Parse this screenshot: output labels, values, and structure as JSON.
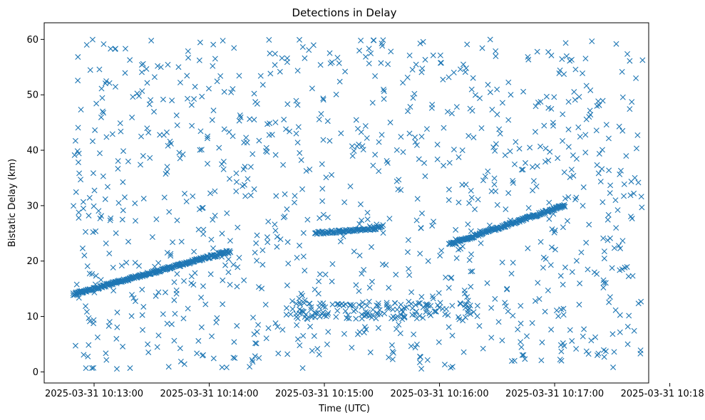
{
  "chart_data": {
    "type": "scatter",
    "title": "Detections in Delay",
    "xlabel": "Time (UTC)",
    "ylabel": "Bistatic Delay (km)",
    "marker": "x",
    "color": "#1f77b4",
    "grid": false,
    "legend": "none",
    "x_axis": {
      "kind": "time",
      "start": "2025-03-31 10:12:49",
      "end": "2025-03-31 10:18:00",
      "range_seconds_from_start": [
        -15,
        300
      ],
      "tick_labels": [
        "2025-03-31 10:13:00",
        "2025-03-31 10:14:00",
        "2025-03-31 10:15:00",
        "2025-03-31 10:16:00",
        "2025-03-31 10:17:00",
        "2025-03-31 10:18:00"
      ]
    },
    "ylim": [
      -2,
      63
    ],
    "y_ticks": [
      0,
      10,
      20,
      30,
      40,
      50,
      60
    ],
    "series": [
      {
        "role": "track-1-rising",
        "x_range": [
          "2025-03-31 10:12:49",
          "2025-03-31 10:14:11"
        ],
        "y_range": [
          14.0,
          21.8
        ],
        "approx_points": 300
      },
      {
        "role": "track-2-plateau",
        "x_range": [
          "2025-03-31 10:14:55",
          "2025-03-31 10:15:30"
        ],
        "y_range": [
          25.0,
          26.0
        ],
        "approx_points": 80
      },
      {
        "role": "track-3-rising",
        "x_range": [
          "2025-03-31 10:16:05",
          "2025-03-31 10:17:05"
        ],
        "y_range": [
          23.0,
          30.0
        ],
        "approx_points": 200
      },
      {
        "role": "cluster-near-11",
        "x_range": [
          "2025-03-31 10:14:40",
          "2025-03-31 10:16:20"
        ],
        "y_range": [
          9.5,
          12.5
        ],
        "approx_points": 140
      },
      {
        "role": "background-clutter",
        "x_range": [
          "2025-03-31 10:12:49",
          "2025-03-31 10:17:46"
        ],
        "y_range": [
          0.5,
          60.0
        ],
        "approx_points": 1000
      }
    ]
  }
}
